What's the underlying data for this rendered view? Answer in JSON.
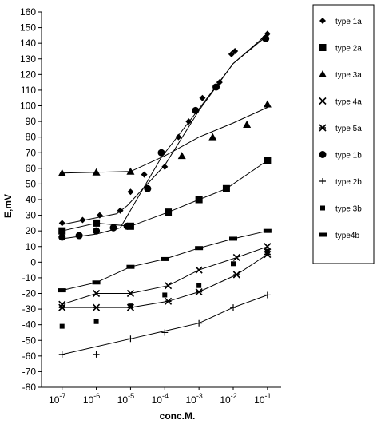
{
  "chart_data": {
    "type": "scatter",
    "title": "",
    "ylabel": "E,mV",
    "xlabel": "conc.M.",
    "ylim": [
      -80,
      160
    ],
    "yticks": [
      -80,
      -70,
      -60,
      -50,
      -40,
      -30,
      -20,
      -10,
      0,
      10,
      20,
      30,
      40,
      50,
      60,
      70,
      80,
      90,
      100,
      110,
      120,
      130,
      140,
      150,
      160
    ],
    "xscale": "log",
    "xlim_log10": [
      -7.6,
      -0.6
    ],
    "xtick_labels": [
      {
        "exp": -7,
        "base": "10",
        "sup": "-7"
      },
      {
        "exp": -6,
        "base": "10",
        "sup": "-6"
      },
      {
        "exp": -5,
        "base": "10",
        "sup": "-5"
      },
      {
        "exp": -4,
        "base": "10",
        "sup": "-4"
      },
      {
        "exp": -3,
        "base": "10",
        "sup": "-3"
      },
      {
        "exp": -2,
        "base": "10",
        "sup": "-2"
      },
      {
        "exp": -1,
        "base": "10",
        "sup": "-1"
      }
    ],
    "legend_position": "top-right",
    "series": [
      {
        "name": "type 1a",
        "marker": "diamond",
        "x_log10": [
          -7,
          -6.4,
          -5.9,
          -5.3,
          -5,
          -4.6,
          -4,
          -3.6,
          -3.3,
          -2.9,
          -2.4,
          -2.05,
          -1.95,
          -1.1,
          -1.0
        ],
        "y": [
          25,
          27,
          30,
          33,
          45,
          56,
          61,
          80,
          90,
          105,
          115,
          133,
          135,
          143,
          146
        ],
        "line": {
          "x_log10": [
            -7,
            -5.4,
            -5.1,
            -4,
            -3,
            -2,
            -1
          ],
          "y": [
            24,
            31,
            36,
            62,
            97,
            127,
            146
          ]
        }
      },
      {
        "name": "type 2a",
        "marker": "square",
        "x_log10": [
          -7,
          -6,
          -5,
          -3.9,
          -3,
          -2.2,
          -1
        ],
        "y": [
          20,
          25,
          23,
          32,
          40,
          47,
          65
        ],
        "line": {
          "x_log10": [
            -7,
            -6,
            -5,
            -3.9,
            -3,
            -2.2,
            -1
          ],
          "y": [
            20,
            25,
            23,
            32,
            40,
            47,
            65
          ]
        }
      },
      {
        "name": "type 3a",
        "marker": "triangle",
        "x_log10": [
          -7,
          -6,
          -5,
          -3.5,
          -2.6,
          -1.6,
          -1
        ],
        "y": [
          57,
          57.5,
          58,
          68,
          80,
          88,
          101
        ],
        "line": {
          "x_log10": [
            -7,
            -6,
            -5,
            -4,
            -3,
            -2,
            -1
          ],
          "y": [
            57,
            57.5,
            58,
            68,
            80,
            89,
            99
          ]
        }
      },
      {
        "name": "type 4a",
        "marker": "x",
        "x_log10": [
          -7,
          -6,
          -5,
          -3.9,
          -3,
          -1.9,
          -1
        ],
        "y": [
          -27,
          -20,
          -20,
          -15,
          -5,
          3,
          10
        ],
        "line": {
          "x_log10": [
            -7,
            -6,
            -5,
            -3.9,
            -3,
            -1.9,
            -1
          ],
          "y": [
            -27,
            -20,
            -20,
            -15,
            -5,
            3,
            10
          ]
        }
      },
      {
        "name": "type 5a",
        "marker": "star",
        "x_log10": [
          -7,
          -6,
          -5,
          -3.9,
          -3,
          -1.9,
          -1
        ],
        "y": [
          -29,
          -29,
          -29,
          -25,
          -19,
          -8,
          5
        ],
        "line": {
          "x_log10": [
            -7,
            -6,
            -5,
            -3.9,
            -3,
            -1.9,
            -1
          ],
          "y": [
            -29,
            -29,
            -29,
            -25,
            -19,
            -8,
            5
          ]
        }
      },
      {
        "name": "type 1b",
        "marker": "circle",
        "x_log10": [
          -7,
          -6.5,
          -6,
          -5.5,
          -5.1,
          -4.5,
          -4.1,
          -3.1,
          -2.5,
          -1.05
        ],
        "y": [
          16,
          17,
          20,
          22,
          23,
          47,
          70,
          97,
          112,
          143
        ],
        "line": {
          "x_log10": [
            -7,
            -6,
            -5.3,
            -4.1,
            -3,
            -2,
            -1
          ],
          "y": [
            15,
            18,
            22,
            67,
            98,
            127,
            145
          ]
        }
      },
      {
        "name": "type 2b",
        "marker": "plus",
        "x_log10": [
          -7,
          -6,
          -5,
          -4,
          -3,
          -2,
          -1
        ],
        "y": [
          -59,
          -59,
          -49,
          -45,
          -39,
          -29,
          -21
        ],
        "line": {
          "x_log10": [
            -7,
            -5,
            -4,
            -3,
            -2,
            -1
          ],
          "y": [
            -59,
            -49,
            -44,
            -39,
            -29,
            -21
          ]
        }
      },
      {
        "name": "type 3b",
        "marker": "small-square",
        "x_log10": [
          -7,
          -6,
          -5,
          -4,
          -3,
          -2,
          -1
        ],
        "y": [
          -41,
          -38,
          -28,
          -21,
          -15,
          -1,
          7
        ],
        "line": null
      },
      {
        "name": "type4b",
        "marker": "dash",
        "x_log10": [
          -7,
          -6,
          -5,
          -4,
          -3,
          -2,
          -1
        ],
        "y": [
          -18,
          -13,
          -3,
          2,
          9,
          15,
          20
        ],
        "line": {
          "x_log10": [
            -7,
            -6,
            -5,
            -4,
            -3,
            -2,
            -1
          ],
          "y": [
            -18,
            -13,
            -3,
            2,
            9,
            15,
            20
          ]
        }
      }
    ]
  }
}
